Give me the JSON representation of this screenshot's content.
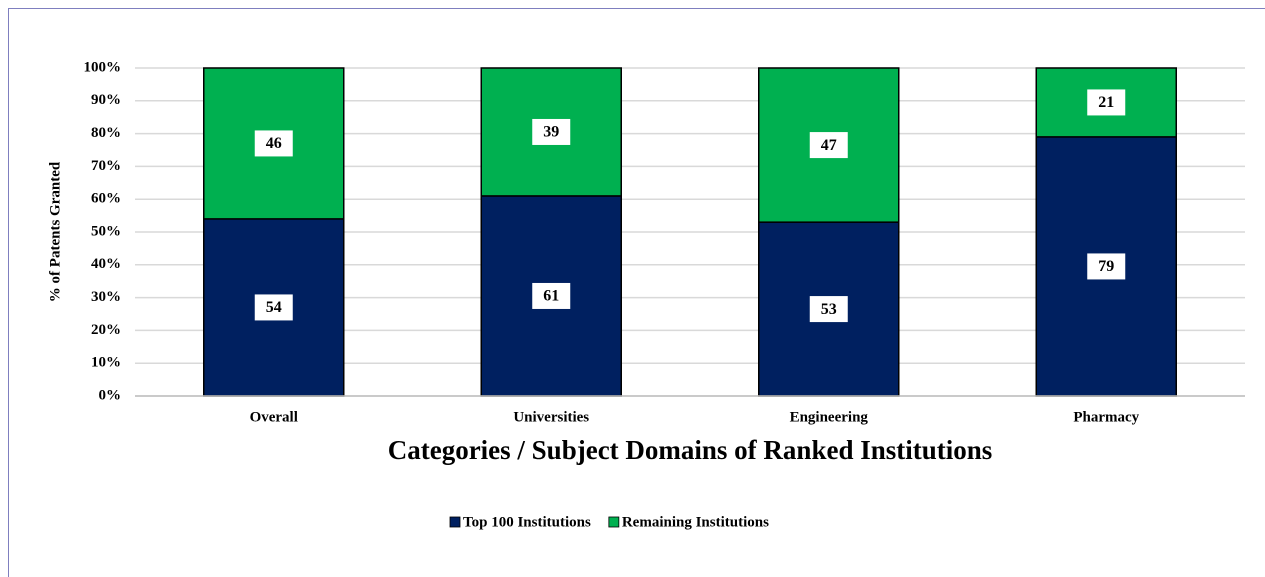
{
  "chart_data": {
    "type": "stacked_bar",
    "x_label": "Categories  / Subject Domains of Ranked Institutions",
    "y_label": "% of Patents Granted",
    "categories": [
      "Overall",
      "Universities",
      "Engineering",
      "Pharmacy"
    ],
    "series": [
      {
        "name": "Top 100 Institutions",
        "color": "#002060",
        "values": [
          54,
          61,
          53,
          79
        ]
      },
      {
        "name": "Remaining Institutions",
        "color": "#00b050",
        "values": [
          46,
          39,
          47,
          21
        ]
      }
    ],
    "ylim": [
      0,
      100
    ],
    "yticks": [
      {
        "value": 0,
        "label": "0%"
      },
      {
        "value": 10,
        "label": "10%"
      },
      {
        "value": 20,
        "label": "20%"
      },
      {
        "value": 30,
        "label": "30%"
      },
      {
        "value": 40,
        "label": "40%"
      },
      {
        "value": 50,
        "label": "50%"
      },
      {
        "value": 60,
        "label": "60%"
      },
      {
        "value": 70,
        "label": "70%"
      },
      {
        "value": 80,
        "label": "80%"
      },
      {
        "value": 90,
        "label": "90%"
      },
      {
        "value": 100,
        "label": "100%"
      }
    ],
    "grid": true,
    "legend": "bottom"
  }
}
